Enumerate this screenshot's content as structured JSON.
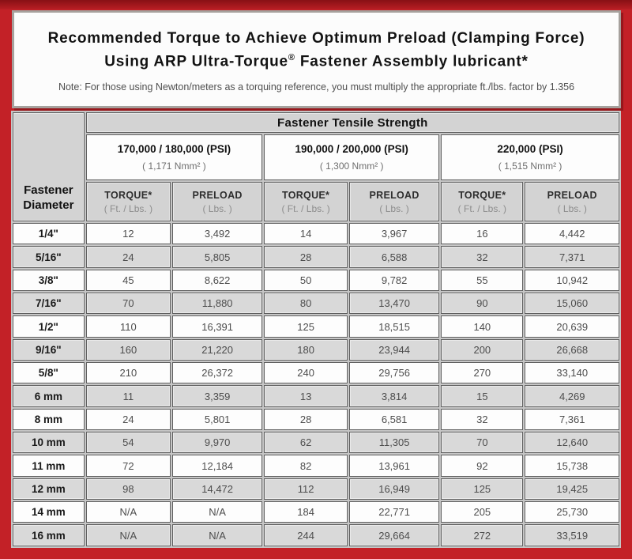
{
  "header": {
    "title_line1": "Recommended Torque to Achieve Optimum Preload (Clamping Force)",
    "title_line2_pre": "Using ARP Ultra-Torque",
    "title_line2_sym": "®",
    "title_line2_post": " Fastener Assembly lubricant*",
    "note": "Note: For those using Newton/meters as a torquing reference, you must multiply the appropriate ft./lbs. factor by 1.356"
  },
  "colors": {
    "frame_red": "#c32127",
    "frame_red_dark": "#871015",
    "header_cell_gray": "#d3d3d3",
    "shaded_row_gray": "#d9d9d9",
    "cell_border_gray": "#606060"
  },
  "table": {
    "corner_line1": "Fastener",
    "corner_line2": "Diameter",
    "tensile_strength_header": "Fastener Tensile Strength",
    "groups": [
      {
        "psi": "170,000 / 180,000 (PSI)",
        "nmm": "( 1,171 Nmm² )"
      },
      {
        "psi": "190,000 / 200,000 (PSI)",
        "nmm": "( 1,300 Nmm² )"
      },
      {
        "psi": "220,000 (PSI)",
        "nmm": "( 1,515 Nmm² )"
      }
    ],
    "sub_headers": {
      "torque_label": "TORQUE*",
      "torque_unit": "( Ft. / Lbs. )",
      "preload_label": "PRELOAD",
      "preload_unit": "( Lbs. )"
    },
    "rows": [
      {
        "diameter": "1/4\"",
        "values": [
          "12",
          "3,492",
          "14",
          "3,967",
          "16",
          "4,442"
        ]
      },
      {
        "diameter": "5/16\"",
        "values": [
          "24",
          "5,805",
          "28",
          "6,588",
          "32",
          "7,371"
        ]
      },
      {
        "diameter": "3/8\"",
        "values": [
          "45",
          "8,622",
          "50",
          "9,782",
          "55",
          "10,942"
        ]
      },
      {
        "diameter": "7/16\"",
        "values": [
          "70",
          "11,880",
          "80",
          "13,470",
          "90",
          "15,060"
        ]
      },
      {
        "diameter": "1/2\"",
        "values": [
          "110",
          "16,391",
          "125",
          "18,515",
          "140",
          "20,639"
        ]
      },
      {
        "diameter": "9/16\"",
        "values": [
          "160",
          "21,220",
          "180",
          "23,944",
          "200",
          "26,668"
        ]
      },
      {
        "diameter": "5/8\"",
        "values": [
          "210",
          "26,372",
          "240",
          "29,756",
          "270",
          "33,140"
        ]
      },
      {
        "diameter": "6 mm",
        "values": [
          "11",
          "3,359",
          "13",
          "3,814",
          "15",
          "4,269"
        ]
      },
      {
        "diameter": "8 mm",
        "values": [
          "24",
          "5,801",
          "28",
          "6,581",
          "32",
          "7,361"
        ]
      },
      {
        "diameter": "10 mm",
        "values": [
          "54",
          "9,970",
          "62",
          "11,305",
          "70",
          "12,640"
        ]
      },
      {
        "diameter": "11 mm",
        "values": [
          "72",
          "12,184",
          "82",
          "13,961",
          "92",
          "15,738"
        ]
      },
      {
        "diameter": "12 mm",
        "values": [
          "98",
          "14,472",
          "112",
          "16,949",
          "125",
          "19,425"
        ]
      },
      {
        "diameter": "14 mm",
        "values": [
          "N/A",
          "N/A",
          "184",
          "22,771",
          "205",
          "25,730"
        ]
      },
      {
        "diameter": "16 mm",
        "values": [
          "N/A",
          "N/A",
          "244",
          "29,664",
          "272",
          "33,519"
        ]
      }
    ]
  }
}
